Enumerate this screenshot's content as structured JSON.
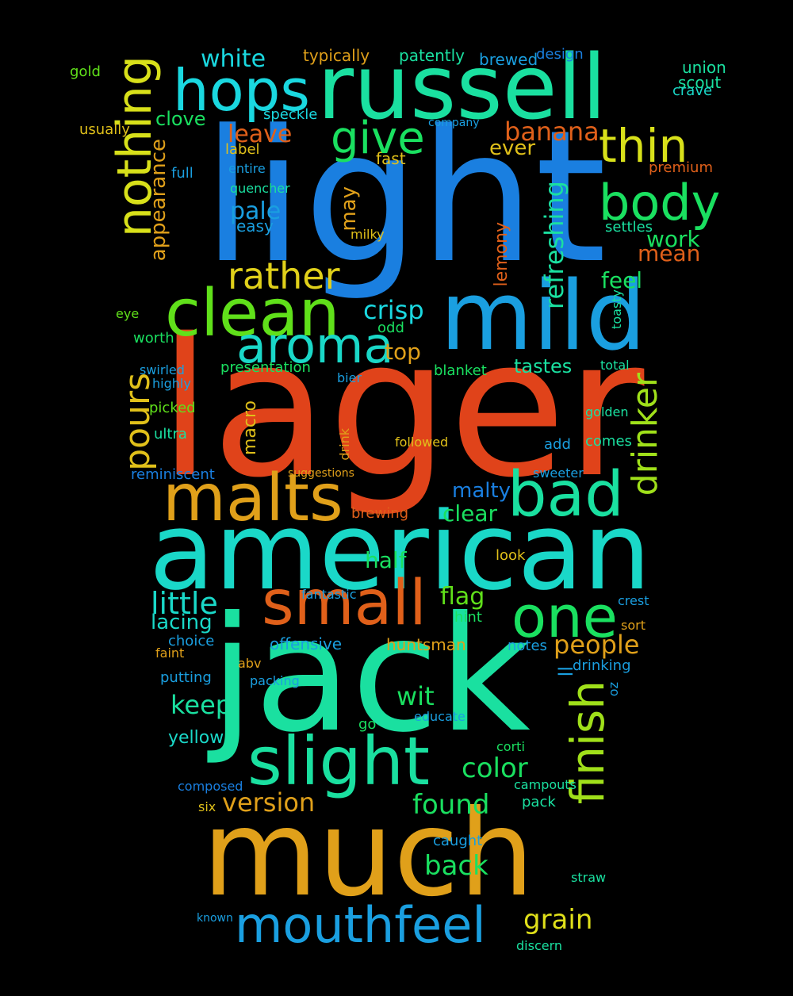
{
  "words": [
    {
      "text": "light",
      "color": "#1a7fe0"
    },
    {
      "text": "lager",
      "color": "#e0431a"
    },
    {
      "text": "american",
      "color": "#1ad8c8"
    },
    {
      "text": "jack",
      "color": "#1ae0a0"
    },
    {
      "text": "much",
      "color": "#e0a01a"
    },
    {
      "text": "russell",
      "color": "#1ae0a0"
    },
    {
      "text": "mild",
      "color": "#1a9fe0"
    },
    {
      "text": "hops",
      "color": "#1ad8e0"
    },
    {
      "text": "nothing",
      "color": "#d8e01a"
    },
    {
      "text": "clean",
      "color": "#60e01a"
    },
    {
      "text": "malts",
      "color": "#e0a01a"
    },
    {
      "text": "small",
      "color": "#e0601a"
    },
    {
      "text": "slight",
      "color": "#1ae0a0"
    },
    {
      "text": "mouthfeel",
      "color": "#1a9fe0"
    },
    {
      "text": "one",
      "color": "#1ae060"
    },
    {
      "text": "bad",
      "color": "#1ae0a0"
    },
    {
      "text": "aroma",
      "color": "#1ad8c8"
    },
    {
      "text": "body",
      "color": "#1ae060"
    },
    {
      "text": "thin",
      "color": "#d8e01a"
    },
    {
      "text": "give",
      "color": "#1ae060"
    },
    {
      "text": "rather",
      "color": "#e0d01a"
    },
    {
      "text": "finish",
      "color": "#a0e01a"
    },
    {
      "text": "drinker",
      "color": "#a0e01a"
    },
    {
      "text": "pours",
      "color": "#e0c01a"
    },
    {
      "text": "banana",
      "color": "#e0601a"
    },
    {
      "text": "little",
      "color": "#1ad8c8"
    },
    {
      "text": "color",
      "color": "#1ae060"
    },
    {
      "text": "version",
      "color": "#e0a01a"
    },
    {
      "text": "grain",
      "color": "#e0e01a"
    },
    {
      "text": "found",
      "color": "#1ae060"
    },
    {
      "text": "back",
      "color": "#1ae060"
    },
    {
      "text": "people",
      "color": "#e0a01a"
    },
    {
      "text": "keep",
      "color": "#1ae0a0"
    },
    {
      "text": "wit",
      "color": "#1ae060"
    },
    {
      "text": "refreshing",
      "color": "#1ae0a0"
    },
    {
      "text": "crisp",
      "color": "#1ad8e0"
    },
    {
      "text": "white",
      "color": "#1ad8e0"
    },
    {
      "text": "appearance",
      "color": "#e0a01a"
    },
    {
      "text": "flag",
      "color": "#60e01a"
    },
    {
      "text": "leave",
      "color": "#e0601a"
    },
    {
      "text": "pale",
      "color": "#1a9fe0"
    },
    {
      "text": "may",
      "color": "#e0a01a"
    },
    {
      "text": "clear",
      "color": "#1ae060"
    },
    {
      "text": "half",
      "color": "#1ae060"
    },
    {
      "text": "top",
      "color": "#e0a01a"
    },
    {
      "text": "feel",
      "color": "#1ae060"
    },
    {
      "text": "mean",
      "color": "#e0601a"
    },
    {
      "text": "work",
      "color": "#1ae060"
    },
    {
      "text": "ever",
      "color": "#e0c01a"
    },
    {
      "text": "clove",
      "color": "#1ae060"
    },
    {
      "text": "lacing",
      "color": "#1ad8c8"
    },
    {
      "text": "malty",
      "color": "#1a7fe0"
    },
    {
      "text": "tastes",
      "color": "#1ae0a0"
    },
    {
      "text": "lemony",
      "color": "#e0601a"
    },
    {
      "text": "macro",
      "color": "#e0c01a"
    },
    {
      "text": "yellow",
      "color": "#1ad8c8"
    },
    {
      "text": "offensive",
      "color": "#1a9fe0"
    },
    {
      "text": "huntsman",
      "color": "#e0a01a"
    },
    {
      "text": "typically",
      "color": "#e0a01a"
    },
    {
      "text": "patently",
      "color": "#1ae0a0"
    },
    {
      "text": "brewed",
      "color": "#1a9fe0"
    },
    {
      "text": "design",
      "color": "#1a7fe0"
    },
    {
      "text": "union",
      "color": "#1ae0a0"
    },
    {
      "text": "scout",
      "color": "#1ae0a0"
    },
    {
      "text": "crave",
      "color": "#1ad8c8"
    },
    {
      "text": "gold",
      "color": "#60e01a"
    },
    {
      "text": "speckle",
      "color": "#1ad8e0"
    },
    {
      "text": "fast",
      "color": "#e0c01a"
    },
    {
      "text": "easy",
      "color": "#1a9fe0"
    },
    {
      "text": "quencher",
      "color": "#1ae0a0"
    },
    {
      "text": "milky",
      "color": "#e0c01a"
    },
    {
      "text": "settles",
      "color": "#1ae0a0"
    },
    {
      "text": "premium",
      "color": "#e0601a"
    },
    {
      "text": "usually",
      "color": "#e0c01a"
    },
    {
      "text": "full",
      "color": "#1a9fe0"
    },
    {
      "text": "label",
      "color": "#e0c01a"
    },
    {
      "text": "entire",
      "color": "#1a9fe0"
    },
    {
      "text": "company",
      "color": "#1a9fe0"
    },
    {
      "text": "worth",
      "color": "#1ae060"
    },
    {
      "text": "presentation",
      "color": "#1ae060"
    },
    {
      "text": "swirled",
      "color": "#1a9fe0"
    },
    {
      "text": "highly",
      "color": "#1a9fe0"
    },
    {
      "text": "picked",
      "color": "#60e01a"
    },
    {
      "text": "ultra",
      "color": "#1ae0a0"
    },
    {
      "text": "blanket",
      "color": "#1ae060"
    },
    {
      "text": "odd",
      "color": "#1ae060"
    },
    {
      "text": "bier",
      "color": "#1a9fe0"
    },
    {
      "text": "drink",
      "color": "#e0a01a"
    },
    {
      "text": "followed",
      "color": "#e0c01a"
    },
    {
      "text": "add",
      "color": "#1a9fe0"
    },
    {
      "text": "comes",
      "color": "#1ae0a0"
    },
    {
      "text": "golden",
      "color": "#1ae0a0"
    },
    {
      "text": "toasty",
      "color": "#1ae0a0"
    },
    {
      "text": "total",
      "color": "#1ae0a0"
    },
    {
      "text": "reminiscent",
      "color": "#1a7fe0"
    },
    {
      "text": "suggestions",
      "color": "#e0a01a"
    },
    {
      "text": "brewing",
      "color": "#e0601a"
    },
    {
      "text": "sweeter",
      "color": "#1a9fe0"
    },
    {
      "text": "look",
      "color": "#e0c01a"
    },
    {
      "text": "fantastic",
      "color": "#1a9fe0"
    },
    {
      "text": "hint",
      "color": "#1ae060"
    },
    {
      "text": "choice",
      "color": "#1a9fe0"
    },
    {
      "text": "faint",
      "color": "#e0a01a"
    },
    {
      "text": "putting",
      "color": "#1a9fe0"
    },
    {
      "text": "packing",
      "color": "#1a9fe0"
    },
    {
      "text": "educate",
      "color": "#1a9fe0"
    },
    {
      "text": "go",
      "color": "#1ae060"
    },
    {
      "text": "notes",
      "color": "#1a9fe0"
    },
    {
      "text": "drinking",
      "color": "#1a9fe0"
    },
    {
      "text": "sort",
      "color": "#e0a01a"
    },
    {
      "text": "crest",
      "color": "#1a9fe0"
    },
    {
      "text": "composed",
      "color": "#1a7fe0"
    },
    {
      "text": "six",
      "color": "#e0c01a"
    },
    {
      "text": "pack",
      "color": "#1ae0a0"
    },
    {
      "text": "campouts",
      "color": "#1ae0a0"
    },
    {
      "text": "caught",
      "color": "#1a9fe0"
    },
    {
      "text": "straw",
      "color": "#1ae0a0"
    },
    {
      "text": "known",
      "color": "#1a9fe0"
    },
    {
      "text": "discern",
      "color": "#1ae0a0"
    },
    {
      "text": "abv",
      "color": "#e0a01a"
    },
    {
      "text": "oz",
      "color": "#1a9fe0"
    },
    {
      "text": "ll",
      "color": "#1a9fe0"
    },
    {
      "text": "corti",
      "color": "#1ae060"
    },
    {
      "text": "eye",
      "color": "#60e01a"
    }
  ]
}
